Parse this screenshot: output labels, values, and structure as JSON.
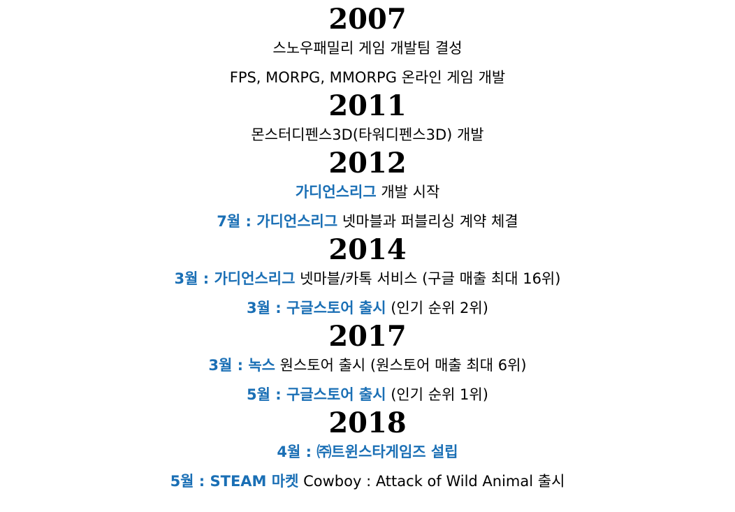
{
  "colors": {
    "highlight": "#1a6fb5",
    "text": "#000000",
    "background": "#ffffff"
  },
  "timeline": [
    {
      "year": "2007",
      "lines": [
        [
          {
            "t": "스노우패밀리 게임 개발팀 결성",
            "hl": false
          }
        ],
        [
          {
            "t": "FPS, MORPG, MMORPG 온라인 게임 개발",
            "hl": false
          }
        ]
      ]
    },
    {
      "year": "2011",
      "lines": [
        [
          {
            "t": "몬스터디펜스3D(타워디펜스3D) 개발",
            "hl": false
          }
        ]
      ]
    },
    {
      "year": "2012",
      "lines": [
        [
          {
            "t": "가디언스리그",
            "hl": true
          },
          {
            "t": " 개발 시작",
            "hl": false
          }
        ],
        [
          {
            "t": "7월 : 가디언스리그",
            "hl": true
          },
          {
            "t": " 넷마블과 퍼블리싱 계약 체결",
            "hl": false
          }
        ]
      ]
    },
    {
      "year": "2014",
      "lines": [
        [
          {
            "t": "3월 : 가디언스리그",
            "hl": true
          },
          {
            "t": " 넷마블/카톡 서비스 (구글 매출 최대 16위)",
            "hl": false
          }
        ],
        [
          {
            "t": "3월 : 구글스토어 출시",
            "hl": true
          },
          {
            "t": " (인기 순위 2위)",
            "hl": false
          }
        ]
      ]
    },
    {
      "year": "2017",
      "lines": [
        [
          {
            "t": "3월 : 녹스",
            "hl": true
          },
          {
            "t": " 원스토어 출시 (원스토어 매출 최대 6위)",
            "hl": false
          }
        ],
        [
          {
            "t": "5월 : 구글스토어 출시",
            "hl": true
          },
          {
            "t": " (인기 순위 1위)",
            "hl": false
          }
        ]
      ]
    },
    {
      "year": "2018",
      "lines": [
        [
          {
            "t": "4월 : ㈜트윈스타게임즈 설립",
            "hl": true
          }
        ],
        [
          {
            "t": "5월 : STEAM 마켓",
            "hl": true
          },
          {
            "t": " Cowboy : Attack of Wild Animal 출시",
            "hl": false
          }
        ]
      ]
    }
  ]
}
